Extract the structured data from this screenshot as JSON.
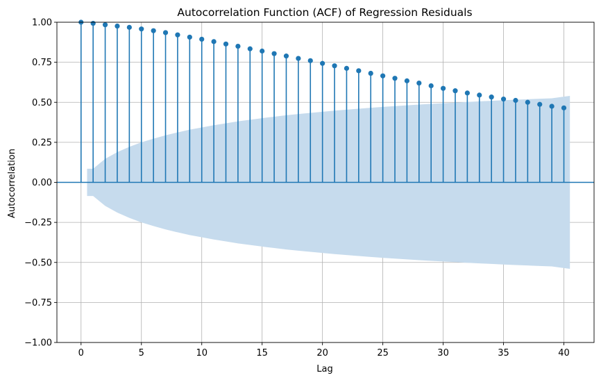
{
  "chart_data": {
    "type": "stem",
    "title": "Autocorrelation Function (ACF) of Regression Residuals",
    "xlabel": "Lag",
    "ylabel": "Autocorrelation",
    "xlim": [
      -2.0,
      42.5
    ],
    "ylim": [
      -1.0,
      1.0
    ],
    "x_ticks": [
      0,
      5,
      10,
      15,
      20,
      25,
      30,
      35,
      40
    ],
    "x_tick_labels": [
      "0",
      "5",
      "10",
      "15",
      "20",
      "25",
      "30",
      "35",
      "40"
    ],
    "y_ticks": [
      -1.0,
      -0.75,
      -0.5,
      -0.25,
      0.0,
      0.25,
      0.5,
      0.75,
      1.0
    ],
    "y_tick_labels": [
      "−1.00",
      "−0.75",
      "−0.50",
      "−0.25",
      "0.00",
      "0.25",
      "0.50",
      "0.75",
      "1.00"
    ],
    "grid": true,
    "colors": {
      "stem": "#1f77b4",
      "band": "#c6dbed"
    },
    "lags": [
      0,
      1,
      2,
      3,
      4,
      5,
      6,
      7,
      8,
      9,
      10,
      11,
      12,
      13,
      14,
      15,
      16,
      17,
      18,
      19,
      20,
      21,
      22,
      23,
      24,
      25,
      26,
      27,
      28,
      29,
      30,
      31,
      32,
      33,
      34,
      35,
      36,
      37,
      38,
      39,
      40
    ],
    "acf": [
      1.0,
      0.993,
      0.984,
      0.976,
      0.968,
      0.958,
      0.947,
      0.935,
      0.921,
      0.907,
      0.894,
      0.879,
      0.864,
      0.85,
      0.834,
      0.82,
      0.804,
      0.789,
      0.774,
      0.76,
      0.743,
      0.728,
      0.712,
      0.697,
      0.681,
      0.665,
      0.65,
      0.634,
      0.62,
      0.603,
      0.587,
      0.572,
      0.558,
      0.545,
      0.533,
      0.52,
      0.512,
      0.5,
      0.487,
      0.475,
      0.465
    ],
    "confidence_band": {
      "x": [
        0.5,
        1,
        2,
        3,
        4,
        5,
        6,
        7,
        8,
        9,
        10,
        11,
        12,
        13,
        14,
        15,
        16,
        17,
        18,
        19,
        20,
        21,
        22,
        23,
        24,
        25,
        26,
        27,
        28,
        29,
        30,
        31,
        32,
        33,
        34,
        35,
        36,
        37,
        38,
        39,
        40,
        40.5
      ],
      "upper": [
        0.085,
        0.085,
        0.147,
        0.189,
        0.222,
        0.25,
        0.273,
        0.294,
        0.312,
        0.329,
        0.343,
        0.357,
        0.369,
        0.381,
        0.391,
        0.401,
        0.41,
        0.419,
        0.427,
        0.434,
        0.441,
        0.448,
        0.454,
        0.46,
        0.466,
        0.471,
        0.476,
        0.481,
        0.486,
        0.49,
        0.494,
        0.498,
        0.502,
        0.506,
        0.509,
        0.513,
        0.516,
        0.519,
        0.522,
        0.525,
        0.535,
        0.54
      ]
    }
  }
}
